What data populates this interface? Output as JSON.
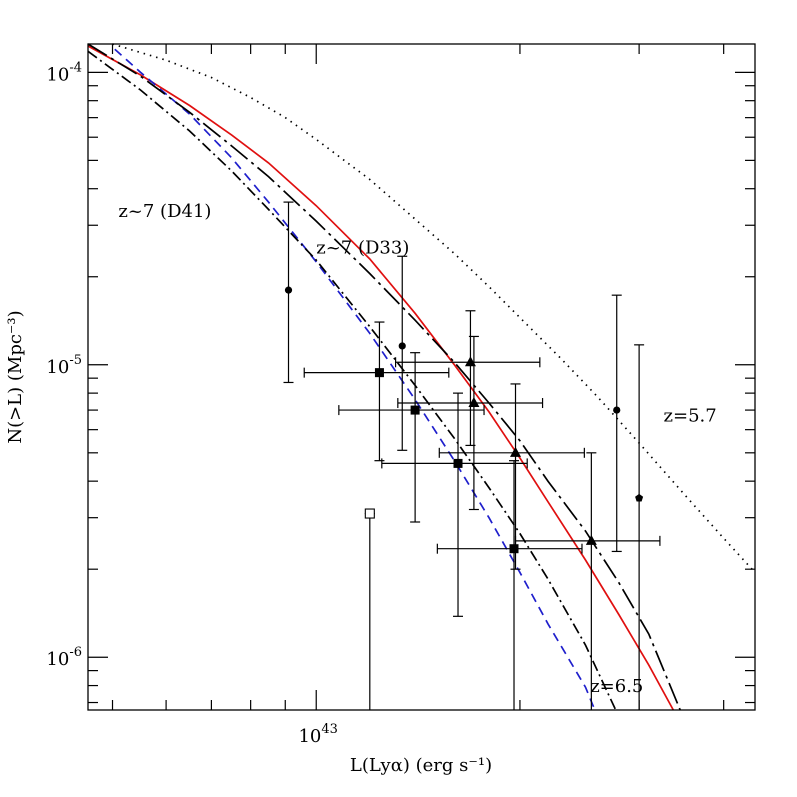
{
  "chart_data": {
    "type": "scatter",
    "title": "",
    "xlabel": "L(Lyα) (erg s⁻¹)",
    "ylabel": "N(>L) (Mpc⁻³)",
    "x_scale": "log",
    "y_scale": "log",
    "xlim": [
      4.6e+42,
      4.45e+43
    ],
    "ylim": [
      6.6e-07,
      0.000125
    ],
    "grid": false,
    "x_tick_labels": [
      {
        "value": 1e+43,
        "base": "10",
        "exp": "43"
      }
    ],
    "y_tick_labels": [
      {
        "value": 0.0001,
        "base": "10",
        "exp": "-4"
      },
      {
        "value": 1e-05,
        "base": "10",
        "exp": "-5"
      },
      {
        "value": 1e-06,
        "base": "10",
        "exp": "-6"
      }
    ],
    "annotations": [
      {
        "text": "z~7 (D41)",
        "color": "#1f1fcc",
        "x": 5.1e+42,
        "y": 3.2e-05
      },
      {
        "text": "z~7 (D33)",
        "color": "#e01010",
        "x": 1e+43,
        "y": 2.4e-05
      },
      {
        "text": "z=5.7",
        "color": "#000000",
        "x": 3.26e+43,
        "y": 6.4e-06
      },
      {
        "text": "z=6.5",
        "color": "#000000",
        "x": 2.54e+43,
        "y": 7.6e-07
      }
    ],
    "series": [
      {
        "name": "z~7 (D33)",
        "kind": "line",
        "style": "solid",
        "color": "#e01010",
        "x": [
          4.6e+42,
          5.5e+42,
          6.5e+42,
          7.5e+42,
          8.5e+42,
          1e+43,
          1.2e+43,
          1.4e+43,
          1.6e+43,
          1.8e+43,
          2e+43,
          2.2e+43,
          2.5e+43,
          2.8e+43,
          3.1e+43,
          3.37e+43
        ],
        "y": [
          0.000123,
          9.8e-05,
          7.7e-05,
          6.1e-05,
          4.9e-05,
          3.5e-05,
          2.3e-05,
          1.5e-05,
          1e-05,
          6.9e-06,
          4.8e-06,
          3.4e-06,
          2.15e-06,
          1.4e-06,
          9.4e-07,
          6.6e-07
        ]
      },
      {
        "name": "z~7 (D41)",
        "kind": "line",
        "style": "dashed",
        "color": "#1f1fcc",
        "x": [
          5.04e+42,
          5.5e+42,
          6.5e+42,
          7.5e+42,
          8.5e+42,
          1e+43,
          1.2e+43,
          1.4e+43,
          1.6e+43,
          1.8e+43,
          2e+43,
          2.2e+43,
          2.5e+43,
          2.58e+43
        ],
        "y": [
          0.00012,
          0.0001,
          7.2e-05,
          5.1e-05,
          3.6e-05,
          2.25e-05,
          1.28e-05,
          7.6e-06,
          4.7e-06,
          3e-06,
          1.95e-06,
          1.3e-06,
          7.9e-07,
          6.6e-07
        ]
      },
      {
        "name": "z=6.5",
        "kind": "line",
        "style": "dashdot",
        "color": "#000000",
        "x": [
          4.6e+42,
          5.5e+42,
          6.5e+42,
          7.5e+42,
          8.5e+42,
          1e+43,
          1.2e+43,
          1.4e+43,
          1.6e+43,
          1.8e+43,
          2e+43,
          2.2e+43,
          2.5e+43,
          2.77e+43
        ],
        "y": [
          0.000118,
          8.7e-05,
          6.3e-05,
          4.6e-05,
          3.4e-05,
          2.28e-05,
          1.35e-05,
          8.5e-06,
          5.6e-06,
          3.8e-06,
          2.65e-06,
          1.85e-06,
          1.1e-06,
          6.6e-07
        ]
      },
      {
        "name": "",
        "kind": "line",
        "style": "dashdot-long",
        "color": "#000000",
        "x": [
          4.6e+42,
          5.5e+42,
          6.5e+42,
          7.5e+42,
          8.5e+42,
          1e+43,
          1.2e+43,
          1.4e+43,
          1.6e+43,
          1.8e+43,
          2e+43,
          2.2e+43,
          2.5e+43,
          2.8e+43,
          3.1e+43,
          3.45e+43
        ],
        "y": [
          0.000125,
          9.7e-05,
          7.3e-05,
          5.6e-05,
          4.4e-05,
          3.1e-05,
          2.05e-05,
          1.42e-05,
          1.02e-05,
          7.4e-06,
          5.5e-06,
          4e-06,
          2.7e-06,
          1.8e-06,
          1.2e-06,
          6.6e-07
        ]
      },
      {
        "name": "z=5.7",
        "kind": "line",
        "style": "dotted",
        "color": "#000000",
        "x": [
          5e+42,
          6e+42,
          7e+42,
          8e+42,
          9e+42,
          1e+43,
          1.2e+43,
          1.4e+43,
          1.6e+43,
          1.8e+43,
          2e+43,
          2.3e+43,
          2.6e+43,
          3e+43,
          3.5e+43,
          4e+43,
          4.45e+43
        ],
        "y": [
          0.000125,
          0.00011,
          9.6e-05,
          8.2e-05,
          7e-05,
          5.9e-05,
          4.3e-05,
          3.15e-05,
          2.4e-05,
          1.85e-05,
          1.45e-05,
          1.05e-05,
          7.8e-06,
          5.4e-06,
          3.6e-06,
          2.55e-06,
          1.95e-06
        ]
      },
      {
        "name": "",
        "kind": "points",
        "marker": "circle",
        "color": "#000000",
        "points": [
          {
            "x": 9.1e+42,
            "y": 1.8e-05,
            "ylo": 8.7e-06,
            "yhi": 3.6e-05
          },
          {
            "x": 1.34e+43,
            "y": 1.16e-05,
            "ylo": 5.1e-06,
            "yhi": 2.35e-05
          },
          {
            "x": 2.78e+43,
            "y": 7e-06,
            "ylo": 2.3e-06,
            "yhi": 1.73e-05
          }
        ]
      },
      {
        "name": "",
        "kind": "points",
        "marker": "pentagon",
        "color": "#000000",
        "points": [
          {
            "x": 3e+43,
            "y": 3.5e-06,
            "ylo": 6.6e-07,
            "yhi": 1.17e-05
          }
        ]
      },
      {
        "name": "",
        "kind": "points",
        "marker": "square",
        "color": "#000000",
        "points": [
          {
            "x": 1.24e+43,
            "y": 9.4e-06,
            "ylo": 4.7e-06,
            "yhi": 1.4e-05,
            "xlo": 9.6e+42,
            "xhi": 1.57e+43
          },
          {
            "x": 1.4e+43,
            "y": 7e-06,
            "ylo": 2.9e-06,
            "yhi": 1.1e-05,
            "xlo": 1.08e+43,
            "xhi": 1.77e+43
          },
          {
            "x": 1.62e+43,
            "y": 4.6e-06,
            "ylo": 1.38e-06,
            "yhi": 8e-06,
            "xlo": 1.25e+43,
            "xhi": 2.05e+43
          },
          {
            "x": 1.96e+43,
            "y": 2.35e-06,
            "ylo": 6.6e-07,
            "yhi": 4.7e-06,
            "xlo": 1.51e+43,
            "xhi": 2.47e+43
          }
        ]
      },
      {
        "name": "",
        "kind": "points",
        "marker": "triangle",
        "color": "#000000",
        "points": [
          {
            "x": 1.69e+43,
            "y": 1.02e-05,
            "ylo": 5.3e-06,
            "yhi": 1.53e-05,
            "xlo": 1.31e+43,
            "xhi": 2.14e+43
          },
          {
            "x": 1.71e+43,
            "y": 7.4e-06,
            "ylo": 3.2e-06,
            "yhi": 1.25e-05,
            "xlo": 1.32e+43,
            "xhi": 2.16e+43
          },
          {
            "x": 1.97e+43,
            "y": 5e-06,
            "ylo": 2e-06,
            "yhi": 8.6e-06,
            "xlo": 1.52e+43,
            "xhi": 2.49e+43
          },
          {
            "x": 2.55e+43,
            "y": 2.5e-06,
            "ylo": 6.6e-07,
            "yhi": 5e-06,
            "xlo": 1.97e+43,
            "xhi": 3.22e+43
          }
        ]
      },
      {
        "name": "",
        "kind": "points",
        "marker": "open-square",
        "color": "#000000",
        "points": [
          {
            "x": 1.2e+43,
            "y": 3.1e-06,
            "ylo": 6.6e-07,
            "yhi": 3.1e-06
          }
        ]
      }
    ]
  }
}
